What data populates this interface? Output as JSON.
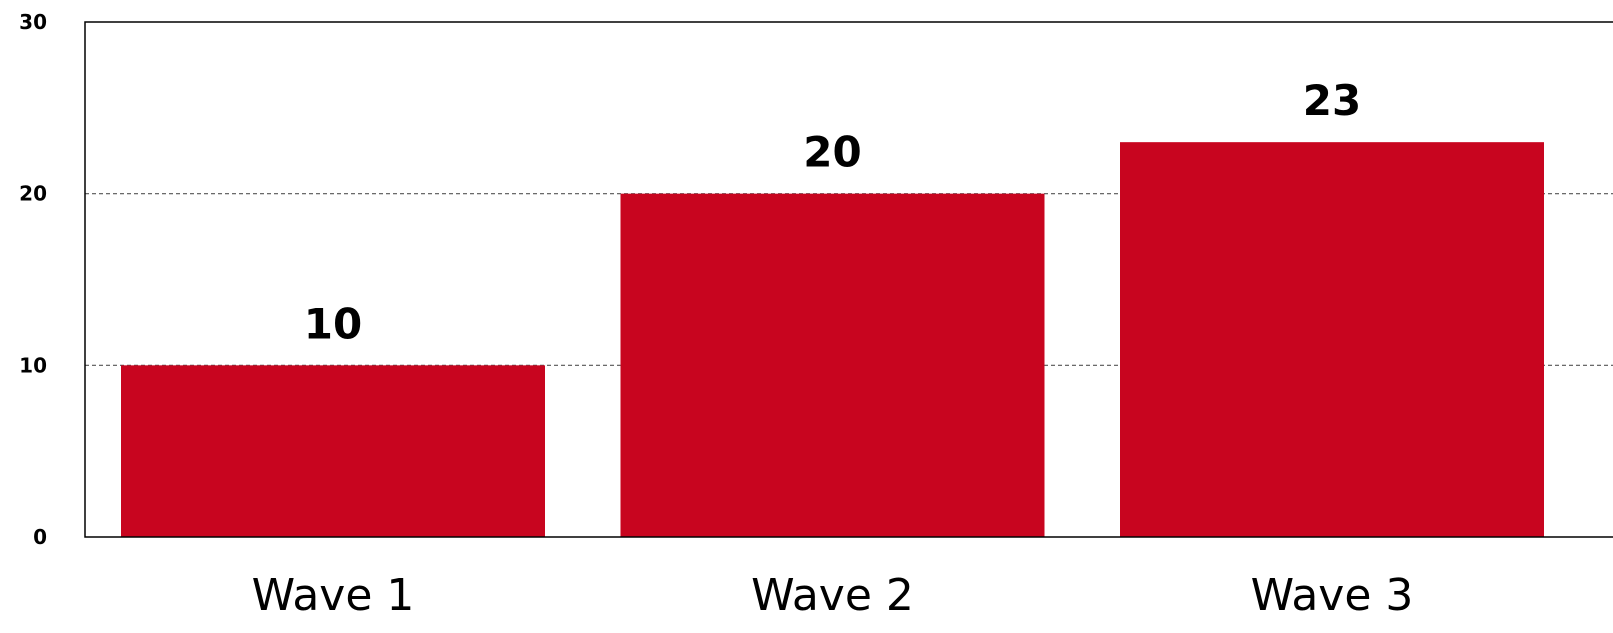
{
  "chart_data": {
    "type": "bar",
    "categories": [
      "Wave 1",
      "Wave 2",
      "Wave 3"
    ],
    "values": [
      10,
      20,
      23
    ],
    "data_labels": [
      "10",
      "20",
      "23"
    ],
    "y_ticks": [
      "0",
      "10",
      "20",
      "30"
    ],
    "ylim": [
      0,
      30
    ],
    "grid": "horizontal dashed",
    "title": "",
    "xlabel": "",
    "ylabel": "",
    "bar_color": "#c8051f"
  }
}
